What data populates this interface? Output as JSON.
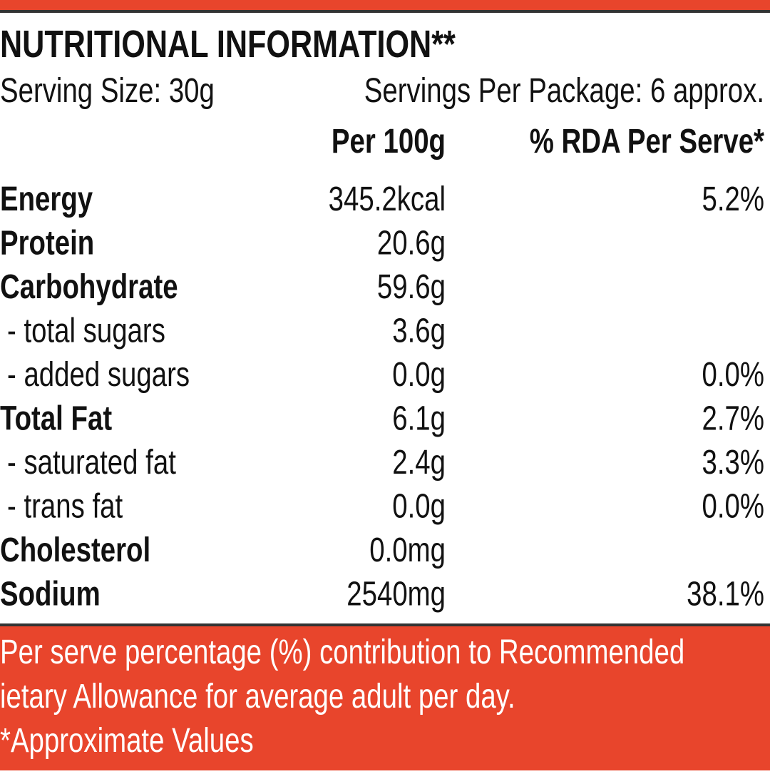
{
  "header": {
    "title": "NUTRITIONAL INFORMATION**",
    "serving_size": "Serving Size: 30g",
    "servings_per_package": "Servings Per Package: 6 approx."
  },
  "table": {
    "columns": [
      "Per 100g",
      "% RDA Per Serve*"
    ],
    "rows": [
      [
        "Energy",
        "345.2kcal",
        "5.2%"
      ],
      [
        "Protein",
        "20.6g",
        null
      ],
      [
        "Carbohydrate",
        "59.6g",
        null
      ],
      [
        " - total sugars",
        "3.6g",
        null
      ],
      [
        " - added sugars",
        "0.0g",
        "0.0%"
      ],
      [
        "Total Fat",
        "6.1g",
        "2.7%"
      ],
      [
        " - saturated fat",
        "2.4g",
        "3.3%"
      ],
      [
        " - trans fat",
        "0.0g",
        "0.0%"
      ],
      [
        "Cholesterol",
        "0.0mg",
        null
      ],
      [
        "Sodium",
        "2540mg",
        "38.1%"
      ]
    ]
  },
  "footer": {
    "lines": [
      "Per serve percentage (%) contribution to Recommended",
      "ietary Allowance for average adult per day.",
      "*Approximate Values"
    ]
  }
}
